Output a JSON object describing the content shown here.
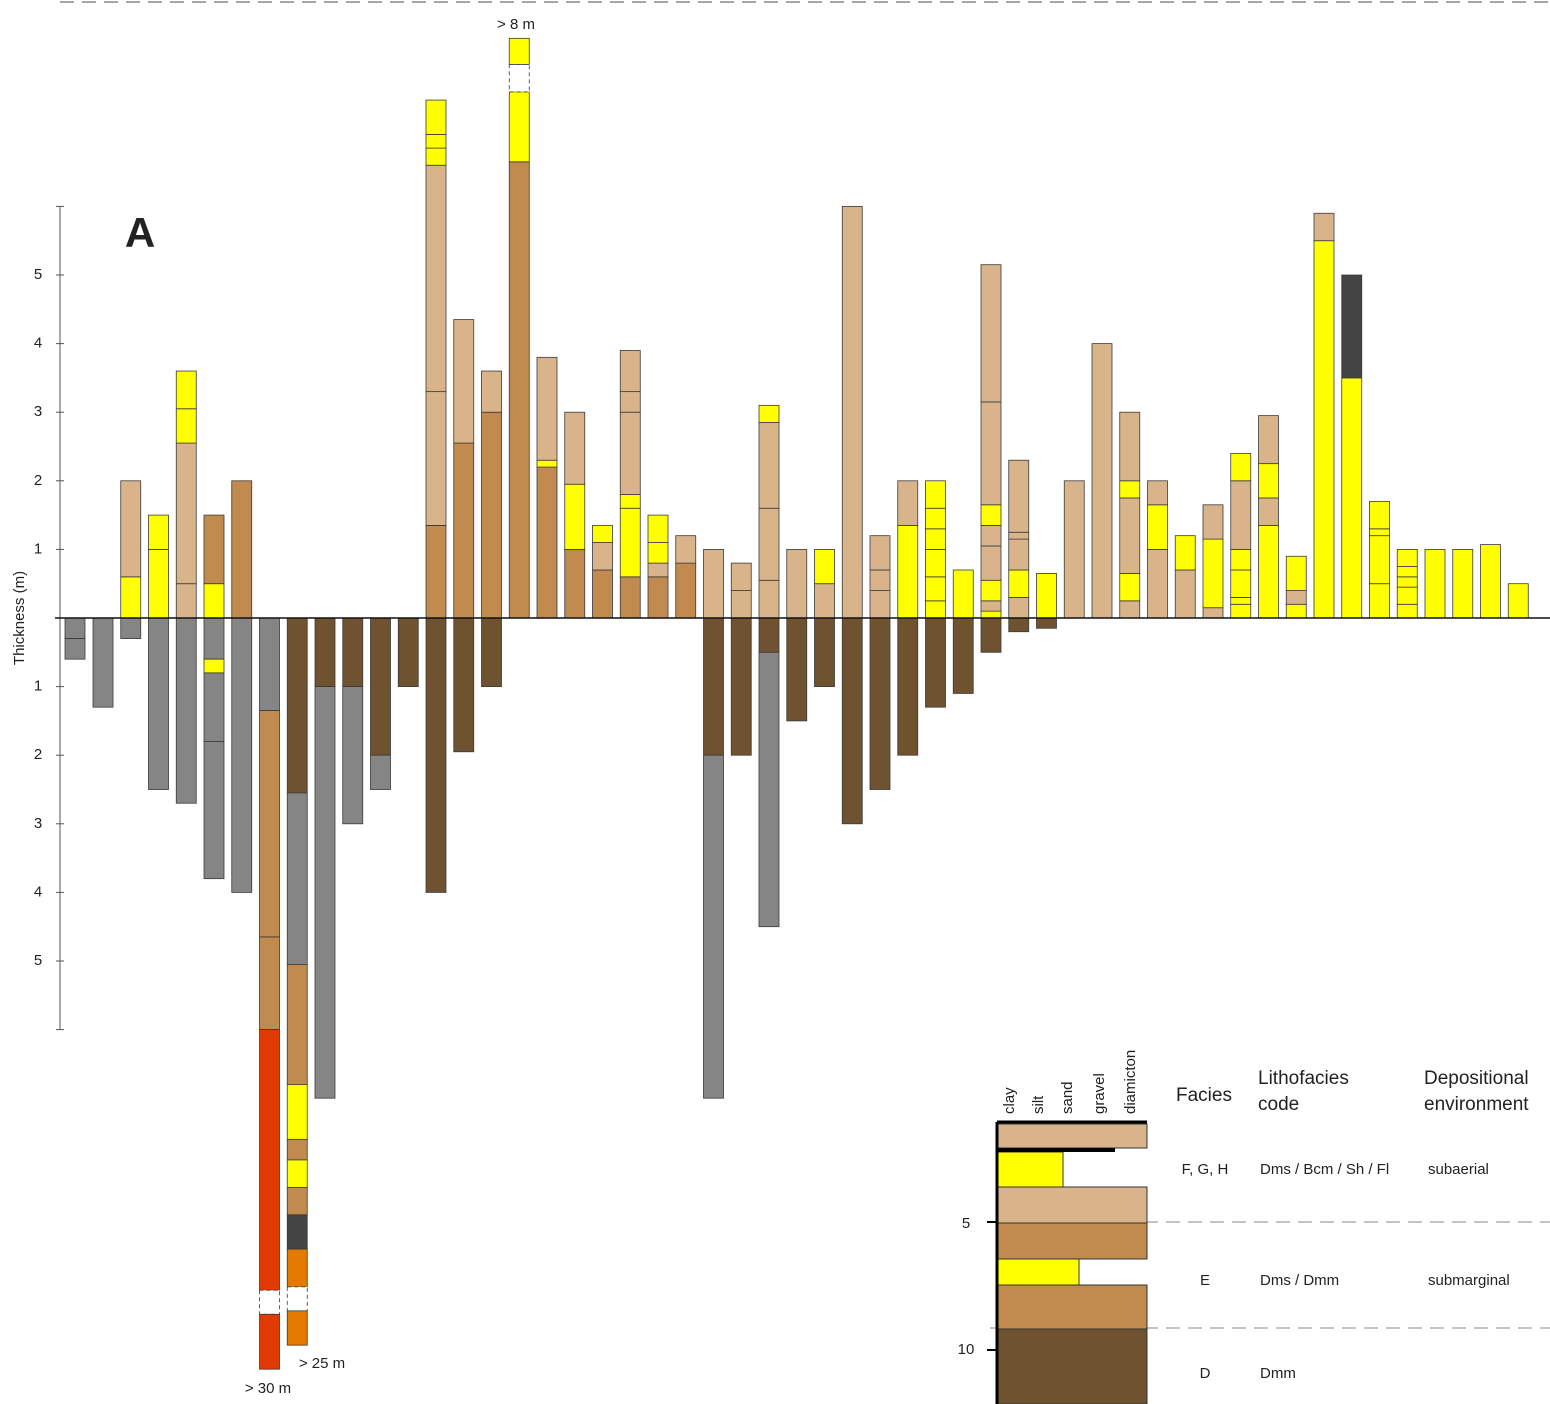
{
  "chart_data": {
    "type": "strat-columns",
    "panel_label": "A",
    "ylabel": "Thickness (m)",
    "ylim": [
      -6,
      6
    ],
    "yticks": [
      {
        "value": -5,
        "label": "5"
      },
      {
        "value": -4,
        "label": "4"
      },
      {
        "value": -3,
        "label": "3"
      },
      {
        "value": -2,
        "label": "2"
      },
      {
        "value": -1,
        "label": "1"
      },
      1,
      2,
      3,
      4,
      5
    ],
    "annotations": [
      "> 8 m",
      "> 25 m",
      "> 30 m"
    ],
    "columns": [
      {
        "up": [],
        "up_colors": [],
        "down": [
          0.3,
          0.3
        ],
        "down_colors": [
          "#858585",
          "#858585"
        ]
      },
      {
        "up": [],
        "up_colors": [],
        "down": [
          1.3
        ],
        "down_colors": [
          "#858585"
        ]
      },
      {
        "up": [
          0.6,
          1.4
        ],
        "up_colors": [
          "#ffff00",
          "#d9b48a"
        ],
        "down": [
          0.3
        ],
        "down_colors": [
          "#858585"
        ]
      },
      {
        "up": [
          1.0,
          0.5
        ],
        "up_colors": [
          "#ffff00",
          "#ffff00"
        ],
        "down": [
          2.5
        ],
        "down_colors": [
          "#858585"
        ]
      },
      {
        "up": [
          0.5,
          2.05,
          0.5,
          0.55
        ],
        "up_colors": [
          "#d9b48a",
          "#d9b48a",
          "#ffff00",
          "#ffff00"
        ],
        "down": [
          2.7
        ],
        "down_colors": [
          "#858585"
        ]
      },
      {
        "up": [
          0.5,
          1.0
        ],
        "up_colors": [
          "#ffff00",
          "#c18a4e"
        ],
        "down": [
          0.6,
          0.2,
          1.0,
          2.0
        ],
        "down_colors": [
          "#858585",
          "#ffff00",
          "#858585",
          "#858585"
        ]
      },
      {
        "up": [
          2.0
        ],
        "up_colors": [
          "#c18a4e"
        ],
        "down": [
          4.0
        ],
        "down_colors": [
          "#858585"
        ]
      },
      {
        "up": [],
        "up_colors": [],
        "down": [
          1.35,
          3.3,
          1.35,
          3.8,
          0.35,
          0.8
        ],
        "down_colors": [
          "#858585",
          "#c18a4e",
          "#c18a4e",
          "#e03a00",
          "#ffffff",
          "#e03a00"
        ]
      },
      {
        "up": [],
        "up_colors": [],
        "down": [
          2.55,
          2.5,
          1.75,
          0.8,
          0.3,
          0.4,
          0.4,
          0.5,
          0.55,
          0.35,
          0.5
        ],
        "down_colors": [
          "#6f5230",
          "#858585",
          "#c18a4e",
          "#ffff00",
          "#c18a4e",
          "#ffff00",
          "#c18a4e",
          "#444444",
          "#e57a00",
          "#ffffff",
          "#e57a00"
        ]
      },
      {
        "up": [],
        "up_colors": [],
        "down": [
          1.0,
          6.0
        ],
        "down_colors": [
          "#6f5230",
          "#858585"
        ]
      },
      {
        "up": [],
        "up_colors": [],
        "down": [
          1.0,
          2.0
        ],
        "down_colors": [
          "#6f5230",
          "#858585"
        ]
      },
      {
        "up": [],
        "up_colors": [],
        "down": [
          2.0,
          0.5
        ],
        "down_colors": [
          "#6f5230",
          "#858585"
        ]
      },
      {
        "up": [],
        "up_colors": [],
        "down": [
          1.0
        ],
        "down_colors": [
          "#6f5230"
        ]
      },
      {
        "up": [
          1.35,
          1.95,
          3.3,
          0.25,
          0.2,
          0.5
        ],
        "up_colors": [
          "#c18a4e",
          "#d9b48a",
          "#d9b48a",
          "#ffff00",
          "#ffff00",
          "#ffff00"
        ],
        "down": [
          4.0
        ],
        "down_colors": [
          "#6f5230"
        ]
      },
      {
        "up": [
          2.55,
          1.8
        ],
        "up_colors": [
          "#c18a4e",
          "#d9b48a"
        ],
        "down": [
          1.95
        ],
        "down_colors": [
          "#6f5230"
        ]
      },
      {
        "up": [
          3.0,
          0.6
        ],
        "up_colors": [
          "#c18a4e",
          "#d9b48a"
        ],
        "down": [
          1.0
        ],
        "down_colors": [
          "#6f5230"
        ]
      },
      {
        "up": [
          6.65,
          1.02,
          0.4,
          0.38
        ],
        "up_colors": [
          "#c18a4e",
          "#ffff00",
          "#ffffff",
          "#ffff00"
        ],
        "down": [],
        "down_colors": []
      },
      {
        "up": [
          2.2,
          0.1,
          1.5
        ],
        "up_colors": [
          "#c18a4e",
          "#ffff00",
          "#d9b48a"
        ],
        "down": [],
        "down_colors": []
      },
      {
        "up": [
          1.0,
          0.95,
          1.05
        ],
        "up_colors": [
          "#c18a4e",
          "#ffff00",
          "#d9b48a"
        ],
        "down": [],
        "down_colors": []
      },
      {
        "up": [
          0.7,
          0.4,
          0.25
        ],
        "up_colors": [
          "#c18a4e",
          "#d9b48a",
          "#ffff00"
        ],
        "down": [],
        "down_colors": []
      },
      {
        "up": [
          0.6,
          1.0,
          0.2,
          1.2,
          0.3,
          0.6
        ],
        "up_colors": [
          "#c18a4e",
          "#ffff00",
          "#ffff00",
          "#d9b48a",
          "#d9b48a",
          "#d9b48a"
        ],
        "down": [],
        "down_colors": []
      },
      {
        "up": [
          0.6,
          0.2,
          0.3,
          0.4
        ],
        "up_colors": [
          "#c18a4e",
          "#d9b48a",
          "#ffff00",
          "#ffff00"
        ],
        "down": [],
        "down_colors": []
      },
      {
        "up": [
          0.8,
          0.4
        ],
        "up_colors": [
          "#c18a4e",
          "#d9b48a"
        ],
        "down": [],
        "down_colors": []
      },
      {
        "up": [
          1.0
        ],
        "up_colors": [
          "#d9b48a"
        ],
        "down": [
          2.0,
          5.0
        ],
        "down_colors": [
          "#6f5230",
          "#858585"
        ]
      },
      {
        "up": [
          0.4,
          0.4
        ],
        "up_colors": [
          "#d9b48a",
          "#d9b48a"
        ],
        "down": [
          2.0
        ],
        "down_colors": [
          "#6f5230"
        ]
      },
      {
        "up": [
          0.55,
          1.05,
          1.25,
          0.25
        ],
        "up_colors": [
          "#d9b48a",
          "#d9b48a",
          "#d9b48a",
          "#ffff00"
        ],
        "down": [
          0.5,
          4.0
        ],
        "down_colors": [
          "#6f5230",
          "#858585"
        ]
      },
      {
        "up": [
          1.0
        ],
        "up_colors": [
          "#d9b48a"
        ],
        "down": [
          1.5
        ],
        "down_colors": [
          "#6f5230"
        ]
      },
      {
        "up": [
          0.5,
          0.5
        ],
        "up_colors": [
          "#d9b48a",
          "#ffff00"
        ],
        "down": [
          1.0
        ],
        "down_colors": [
          "#6f5230"
        ]
      },
      {
        "up": [
          6.0
        ],
        "up_colors": [
          "#d9b48a"
        ],
        "down": [
          3.0
        ],
        "down_colors": [
          "#6f5230"
        ]
      },
      {
        "up": [
          0.4,
          0.3,
          0.5
        ],
        "up_colors": [
          "#d9b48a",
          "#d9b48a",
          "#d9b48a"
        ],
        "down": [
          2.5
        ],
        "down_colors": [
          "#6f5230"
        ]
      },
      {
        "up": [
          1.35,
          0.65
        ],
        "up_colors": [
          "#ffff00",
          "#d9b48a"
        ],
        "down": [
          2.0
        ],
        "down_colors": [
          "#6f5230"
        ]
      },
      {
        "up": [
          0.25,
          0.35,
          0.4,
          0.3,
          0.3,
          0.4
        ],
        "up_colors": [
          "#ffff00",
          "#ffff00",
          "#ffff00",
          "#ffff00",
          "#ffff00",
          "#ffff00"
        ],
        "down": [
          1.3
        ],
        "down_colors": [
          "#6f5230"
        ]
      },
      {
        "up": [
          0.7
        ],
        "up_colors": [
          "#ffff00"
        ],
        "down": [
          1.1
        ],
        "down_colors": [
          "#6f5230"
        ]
      },
      {
        "up": [
          0.1,
          0.15,
          0.3,
          0.5,
          0.3,
          0.3,
          1.5,
          2.0
        ],
        "up_colors": [
          "#ffff00",
          "#d9b48a",
          "#ffff00",
          "#d9b48a",
          "#d9b48a",
          "#ffff00",
          "#d9b48a",
          "#d9b48a"
        ],
        "down": [
          0.5
        ],
        "down_colors": [
          "#6f5230"
        ]
      },
      {
        "up": [
          0.3,
          0.4,
          0.45,
          0.1,
          1.05
        ],
        "up_colors": [
          "#d9b48a",
          "#ffff00",
          "#d9b48a",
          "#d9b48a",
          "#d9b48a"
        ],
        "down": [
          0.2
        ],
        "down_colors": [
          "#6f5230"
        ]
      },
      {
        "up": [
          0.65
        ],
        "up_colors": [
          "#ffff00"
        ],
        "down": [
          0.15
        ],
        "down_colors": [
          "#6f5230"
        ]
      },
      {
        "up": [
          2.0
        ],
        "up_colors": [
          "#d9b48a"
        ],
        "down": [],
        "down_colors": []
      },
      {
        "up": [
          4.0
        ],
        "up_colors": [
          "#d9b48a"
        ],
        "down": [],
        "down_colors": []
      },
      {
        "up": [
          0.25,
          0.4,
          1.1,
          0.25,
          1.0
        ],
        "up_colors": [
          "#d9b48a",
          "#ffff00",
          "#d9b48a",
          "#ffff00",
          "#d9b48a"
        ],
        "down": [],
        "down_colors": []
      },
      {
        "up": [
          1.0,
          0.65,
          0.35
        ],
        "up_colors": [
          "#d9b48a",
          "#ffff00",
          "#d9b48a"
        ],
        "down": [],
        "down_colors": []
      },
      {
        "up": [
          0.7,
          0.5
        ],
        "up_colors": [
          "#d9b48a",
          "#ffff00"
        ],
        "down": [],
        "down_colors": []
      },
      {
        "up": [
          0.15,
          1.0,
          0.5
        ],
        "up_colors": [
          "#d9b48a",
          "#ffff00",
          "#d9b48a"
        ],
        "down": [],
        "down_colors": []
      },
      {
        "up": [
          0.2,
          0.1,
          0.4,
          0.3,
          1.0,
          0.4
        ],
        "up_colors": [
          "#ffff00",
          "#ffff00",
          "#ffff00",
          "#ffff00",
          "#d9b48a",
          "#ffff00"
        ],
        "down": [],
        "down_colors": []
      },
      {
        "up": [
          1.35,
          0.4,
          0.5,
          0.7
        ],
        "up_colors": [
          "#ffff00",
          "#d9b48a",
          "#ffff00",
          "#d9b48a"
        ],
        "down": [],
        "down_colors": []
      },
      {
        "up": [
          0.2,
          0.2,
          0.5
        ],
        "up_colors": [
          "#ffff00",
          "#d9b48a",
          "#ffff00"
        ],
        "down": [],
        "down_colors": []
      },
      {
        "up": [
          5.5,
          0.4
        ],
        "up_colors": [
          "#ffff00",
          "#d9b48a"
        ],
        "down": [],
        "down_colors": []
      },
      {
        "up": [
          3.5,
          1.5
        ],
        "up_colors": [
          "#ffff00",
          "#444444"
        ],
        "down": [],
        "down_colors": []
      },
      {
        "up": [
          0.5,
          0.7,
          0.1,
          0.4
        ],
        "up_colors": [
          "#ffff00",
          "#ffff00",
          "#ffff00",
          "#ffff00"
        ],
        "down": [],
        "down_colors": []
      },
      {
        "up": [
          0.2,
          0.25,
          0.15,
          0.15,
          0.25
        ],
        "up_colors": [
          "#ffff00",
          "#ffff00",
          "#ffff00",
          "#ffff00",
          "#ffff00"
        ],
        "down": [],
        "down_colors": []
      },
      {
        "up": [
          1.0
        ],
        "up_colors": [
          "#ffff00"
        ],
        "down": [],
        "down_colors": []
      },
      {
        "up": [
          1.0
        ],
        "up_colors": [
          "#ffff00"
        ],
        "down": [],
        "down_colors": []
      },
      {
        "up": [
          1.07
        ],
        "up_colors": [
          "#ffff00"
        ],
        "down": [],
        "down_colors": []
      },
      {
        "up": [
          0.5
        ],
        "up_colors": [
          "#ffff00"
        ],
        "down": [],
        "down_colors": []
      }
    ]
  },
  "log_key": {
    "grain_sizes": [
      "clay",
      "silt",
      "sand",
      "gravel",
      "diamicton"
    ],
    "headers": [
      "Facies",
      "Lithofacies code",
      "Depositional environment"
    ],
    "depth_ticks": [
      "5",
      "10"
    ],
    "rows": [
      [
        "F, G, H",
        "Dms / Bcm / Sh / Fl",
        "subaerial"
      ],
      [
        "E",
        "Dms / Dmm",
        "submarginal"
      ],
      [
        "D",
        "Dmm",
        ""
      ]
    ]
  }
}
